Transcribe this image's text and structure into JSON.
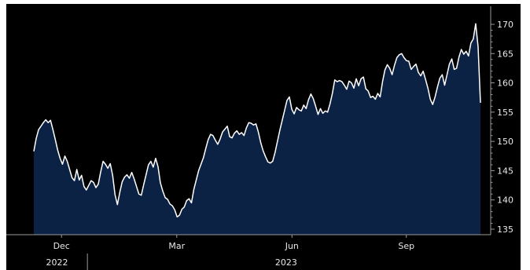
{
  "colors": {
    "background": "#000000",
    "area_fill": "#0b2245",
    "line": "#ffffff",
    "axis": "#9a9a9a",
    "text": "#e8e8e8"
  },
  "chart_data": {
    "type": "area",
    "title": "",
    "xlabel": "",
    "ylabel": "",
    "ylim": [
      133.5,
      172
    ],
    "y_ticks": [
      135,
      140,
      145,
      150,
      155,
      160,
      165,
      170
    ],
    "y_axis_side": "right",
    "grid": false,
    "x_ticks": [
      {
        "label": "Dec",
        "t": 0.062
      },
      {
        "label": "Mar",
        "t": 0.32
      },
      {
        "label": "Jun",
        "t": 0.578
      },
      {
        "label": "Sep",
        "t": 0.834
      }
    ],
    "year_labels": [
      {
        "label": "2022",
        "t": 0.052
      },
      {
        "label": "2023",
        "t": 0.565
      }
    ],
    "year_separators": [
      0.12
    ],
    "series": [
      {
        "values": [
          148.3,
          150.5,
          152.0,
          152.6,
          153.2,
          153.7,
          153.2,
          153.6,
          152.0,
          150.3,
          148.5,
          147.1,
          146.1,
          147.5,
          146.6,
          145.2,
          143.8,
          143.3,
          145.2,
          143.4,
          144.2,
          142.3,
          141.7,
          142.5,
          143.3,
          143.0,
          142.1,
          142.7,
          144.8,
          146.6,
          146.1,
          145.4,
          146.2,
          144.2,
          140.9,
          139.2,
          141.3,
          143.1,
          143.9,
          144.3,
          143.7,
          144.7,
          143.6,
          142.3,
          141.0,
          140.8,
          142.6,
          144.3,
          146.0,
          146.6,
          145.6,
          147.1,
          145.7,
          142.9,
          141.5,
          140.4,
          140.1,
          139.3,
          139.0,
          138.3,
          137.1,
          137.4,
          138.4,
          138.8,
          139.9,
          140.2,
          139.5,
          141.8,
          143.4,
          145.0,
          146.1,
          147.2,
          148.8,
          150.3,
          151.2,
          151.0,
          150.2,
          149.5,
          150.4,
          151.6,
          152.1,
          152.6,
          150.8,
          150.6,
          151.4,
          151.8,
          151.2,
          151.5,
          151.0,
          152.3,
          153.2,
          153.1,
          152.8,
          153.0,
          151.6,
          149.8,
          148.4,
          147.4,
          146.5,
          146.3,
          146.6,
          148.1,
          150.0,
          151.9,
          153.6,
          155.3,
          157.0,
          157.6,
          155.5,
          154.7,
          155.8,
          155.4,
          155.2,
          156.2,
          155.6,
          157.1,
          158.1,
          157.3,
          156.0,
          154.6,
          155.6,
          154.8,
          155.2,
          155.0,
          156.4,
          158.2,
          160.5,
          160.2,
          160.4,
          160.2,
          159.6,
          158.9,
          160.3,
          160.0,
          159.1,
          160.7,
          159.5,
          160.7,
          161.0,
          159.0,
          158.6,
          157.5,
          157.7,
          157.2,
          158.2,
          157.6,
          160.2,
          162.2,
          163.1,
          162.5,
          161.4,
          163.0,
          164.3,
          164.8,
          165.0,
          164.3,
          163.8,
          163.7,
          162.3,
          162.8,
          163.2,
          161.8,
          161.2,
          162.0,
          160.6,
          159.1,
          157.2,
          156.3,
          157.6,
          159.3,
          160.8,
          161.4,
          159.6,
          161.4,
          163.2,
          164.1,
          162.3,
          162.5,
          164.4,
          165.7,
          164.9,
          165.4,
          164.6,
          166.8,
          167.5,
          170.1,
          166.2,
          156.6
        ]
      }
    ]
  }
}
